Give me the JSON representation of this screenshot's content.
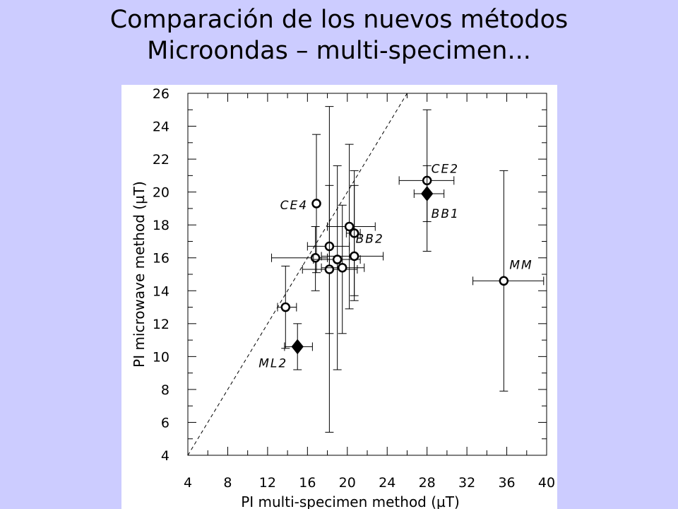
{
  "slide": {
    "title_line1": "Comparación de los nuevos métodos",
    "title_line2": "Microondas – multi-specimen..."
  },
  "chart_data": {
    "type": "scatter",
    "xlabel": "PI multi-specimen method  (µT)",
    "ylabel": "PI microwave method  (µT)",
    "xlim": [
      4,
      40
    ],
    "ylim": [
      4,
      26
    ],
    "xticks": [
      4,
      8,
      12,
      16,
      20,
      24,
      28,
      32,
      36,
      40
    ],
    "yticks": [
      4,
      6,
      8,
      10,
      12,
      14,
      16,
      18,
      20,
      22,
      24,
      26
    ],
    "reference_line": {
      "style": "dashed",
      "x": [
        4,
        26
      ],
      "y": [
        4,
        26
      ]
    },
    "series": [
      {
        "marker": "circle",
        "points": [
          {
            "label": "CE2",
            "x": 28.0,
            "y": 20.7,
            "xerr": [
              25.2,
              30.7
            ],
            "yerr": [
              16.4,
              25.0
            ]
          },
          {
            "label": "CE4",
            "x": 16.9,
            "y": 19.3,
            "xerr": [
              16.9,
              16.9
            ],
            "yerr": [
              15.1,
              23.5
            ]
          },
          {
            "label": "MM",
            "x": 35.7,
            "y": 14.6,
            "xerr": [
              32.6,
              39.7
            ],
            "yerr": [
              7.9,
              21.3
            ]
          },
          {
            "label": "",
            "x": 13.8,
            "y": 13.0,
            "xerr": [
              13.0,
              14.9
            ],
            "yerr": [
              10.5,
              15.5
            ]
          },
          {
            "label": "",
            "x": 16.8,
            "y": 16.0,
            "xerr": [
              12.4,
              18.0
            ],
            "yerr": [
              14.0,
              17.9
            ]
          },
          {
            "label": "",
            "x": 18.2,
            "y": 16.7,
            "xerr": [
              16.0,
              20.2
            ],
            "yerr": [
              5.4,
              25.2
            ]
          },
          {
            "label": "",
            "x": 18.2,
            "y": 15.3,
            "xerr": [
              15.5,
              21.0
            ],
            "yerr": [
              11.4,
              20.4
            ]
          },
          {
            "label": "",
            "x": 19.0,
            "y": 15.9,
            "xerr": [
              16.6,
              21.3
            ],
            "yerr": [
              9.2,
              21.6
            ]
          },
          {
            "label": "",
            "x": 19.5,
            "y": 15.4,
            "xerr": [
              17.4,
              21.7
            ],
            "yerr": [
              11.4,
              19.2
            ]
          },
          {
            "label": "",
            "x": 20.2,
            "y": 17.9,
            "xerr": [
              18.0,
              22.8
            ],
            "yerr": [
              12.9,
              22.9
            ]
          },
          {
            "label": "",
            "x": 20.7,
            "y": 17.5,
            "xerr": [
              19.9,
              21.3
            ],
            "yerr": [
              13.7,
              21.3
            ]
          },
          {
            "label": "BB2",
            "x": 20.7,
            "y": 16.1,
            "xerr": [
              17.4,
              23.6
            ],
            "yerr": [
              13.4,
              20.4
            ]
          }
        ]
      },
      {
        "marker": "diamond",
        "points": [
          {
            "label": "BB1",
            "x": 28.0,
            "y": 19.9,
            "xerr": [
              26.7,
              29.7
            ],
            "yerr": [
              18.2,
              21.6
            ]
          },
          {
            "label": "ML2",
            "x": 15.0,
            "y": 10.6,
            "xerr": [
              13.7,
              16.5
            ],
            "yerr": [
              9.2,
              12.0
            ]
          }
        ]
      }
    ]
  }
}
